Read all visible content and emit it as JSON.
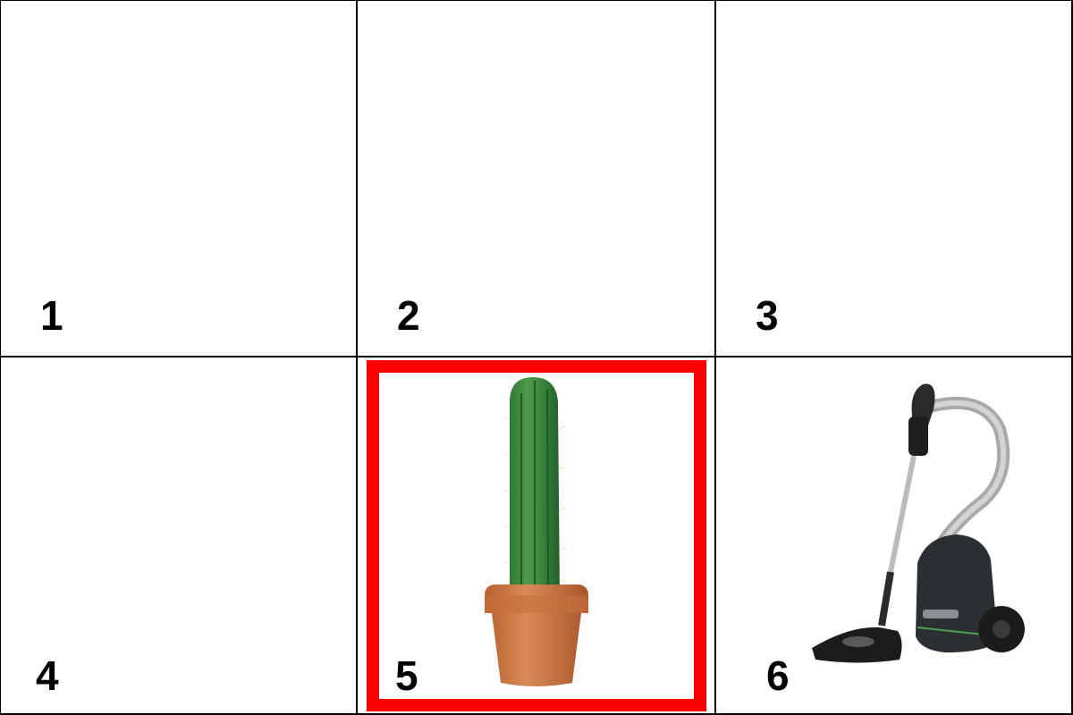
{
  "grid": {
    "rows": 2,
    "cols": 3,
    "cells": [
      {
        "label": "1",
        "content": "empty"
      },
      {
        "label": "2",
        "content": "empty"
      },
      {
        "label": "3",
        "content": "empty"
      },
      {
        "label": "4",
        "content": "empty"
      },
      {
        "label": "5",
        "content": "cactus-in-pot",
        "selected": true
      },
      {
        "label": "6",
        "content": "vacuum-cleaner"
      }
    ]
  },
  "colors": {
    "selection": "#ff0000",
    "grid_lines": "#000000",
    "background": "#ffffff"
  }
}
